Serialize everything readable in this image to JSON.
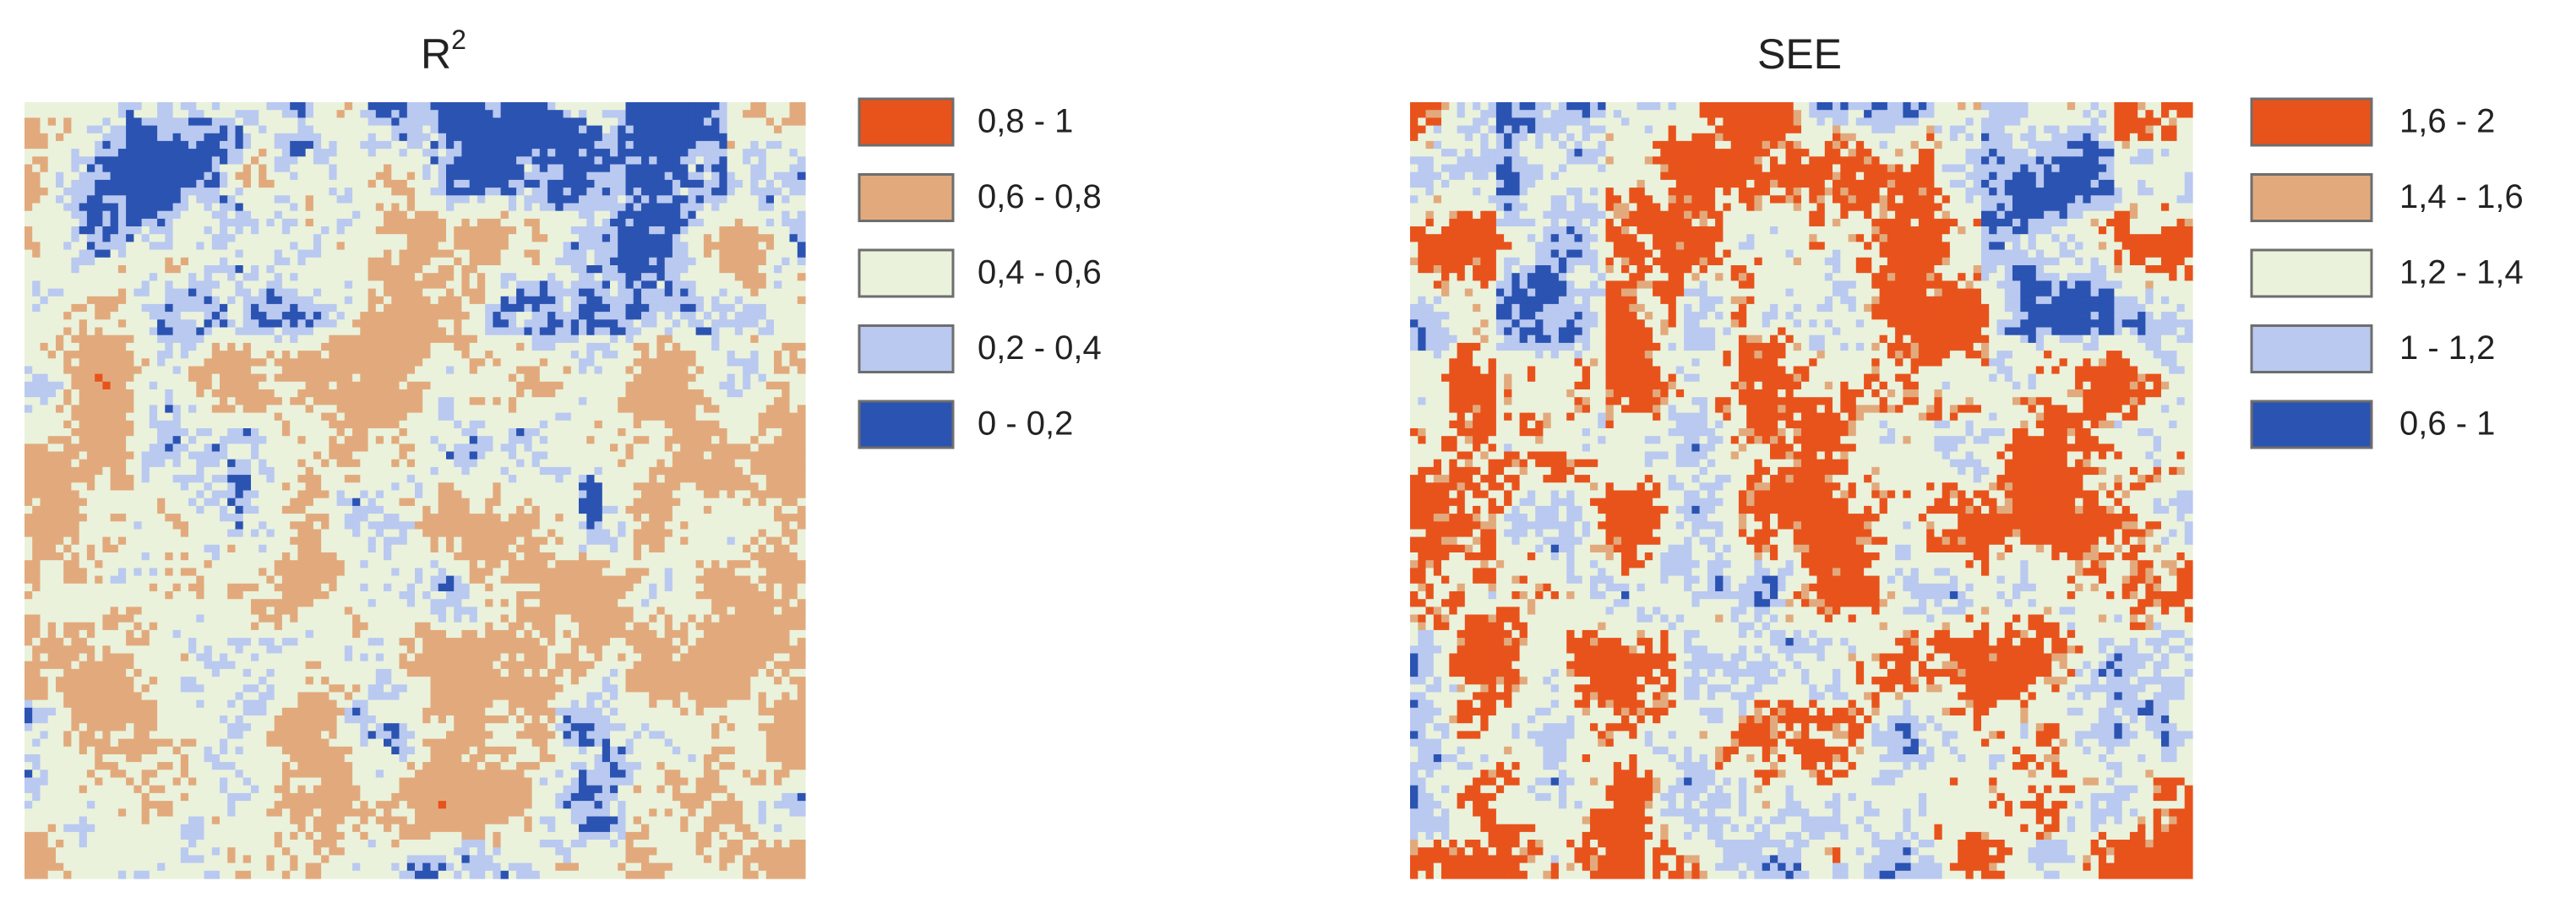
{
  "maps": [
    {
      "title": {
        "text": "R",
        "superscript": "2"
      },
      "legend": [
        {
          "label": "0,8 - 1",
          "color": "#e8531c"
        },
        {
          "label": "0,6 - 0,8",
          "color": "#e2aa7c"
        },
        {
          "label": "0,4 - 0,6",
          "color": "#eaf2dc"
        },
        {
          "label": "0,2 - 0,4",
          "color": "#b9c9f0"
        },
        {
          "label": "0 - 0,2",
          "color": "#2b53b2"
        }
      ]
    },
    {
      "title": {
        "text": "SEE"
      },
      "legend": [
        {
          "label": "1,6 - 2",
          "color": "#e8531c"
        },
        {
          "label": "1,4 - 1,6",
          "color": "#e2aa7c"
        },
        {
          "label": "1,2 - 1,4",
          "color": "#eaf2dc"
        },
        {
          "label": "1 - 1,2",
          "color": "#b9c9f0"
        },
        {
          "label": "0,6 - 1",
          "color": "#2b53b2"
        }
      ]
    }
  ]
}
